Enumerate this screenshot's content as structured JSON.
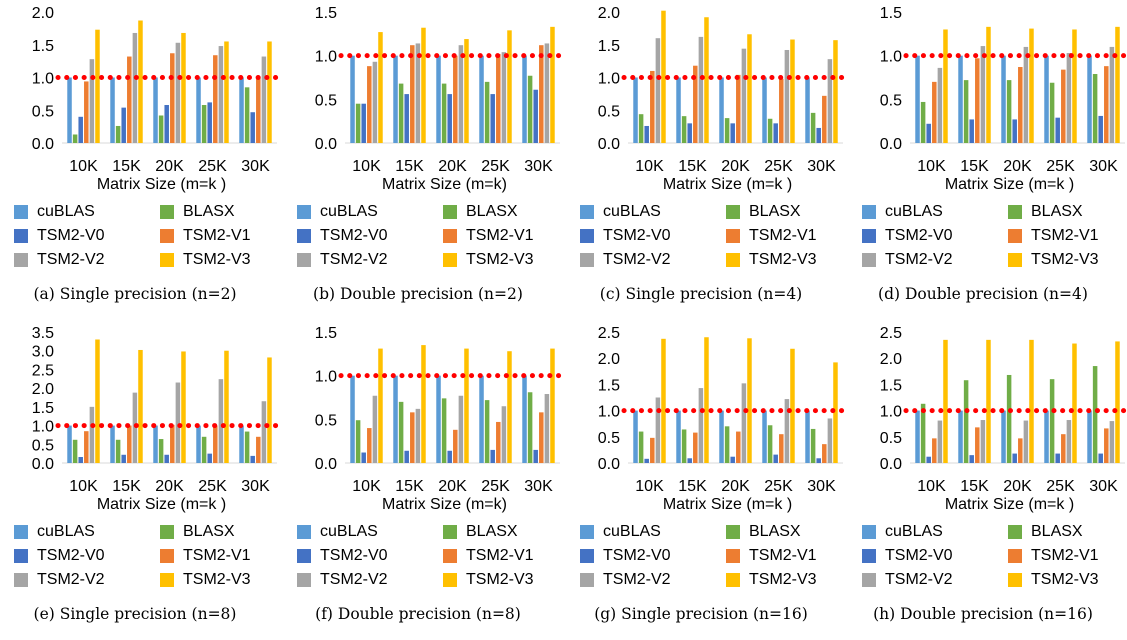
{
  "series_colors": {
    "cuBLAS": "#5b9bd5",
    "BLASX": "#70ad47",
    "TSM2-V0": "#4472c4",
    "TSM2-V1": "#ed7d31",
    "TSM2-V2": "#a5a5a5",
    "TSM2-V3": "#ffc000"
  },
  "reference_line_color": "#ff0000",
  "chart_data": [
    {
      "type": "bar",
      "caption": "(a) Single precision (n=2)",
      "xlabel": "Matrix Size (m=k )",
      "categories": [
        "10K",
        "15K",
        "20K",
        "25K",
        "30K"
      ],
      "ylim": [
        0,
        2.0
      ],
      "yticks": [
        "0.0",
        "0.5",
        "1.0",
        "1.5",
        "2.0"
      ],
      "reference_line": 1.0,
      "series": [
        {
          "name": "cuBLAS",
          "values": [
            1.0,
            1.0,
            1.0,
            1.0,
            1.0
          ]
        },
        {
          "name": "BLASX",
          "values": [
            0.13,
            0.26,
            0.42,
            0.58,
            0.85
          ]
        },
        {
          "name": "TSM2-V0",
          "values": [
            0.4,
            0.54,
            0.58,
            0.62,
            0.47
          ]
        },
        {
          "name": "TSM2-V1",
          "values": [
            0.94,
            1.32,
            1.37,
            1.34,
            1.0
          ]
        },
        {
          "name": "TSM2-V2",
          "values": [
            1.28,
            1.68,
            1.53,
            1.48,
            1.32
          ]
        },
        {
          "name": "TSM2-V3",
          "values": [
            1.73,
            1.87,
            1.68,
            1.55,
            1.55
          ]
        }
      ]
    },
    {
      "type": "bar",
      "caption": "(b) Double precision (n=2)",
      "xlabel": "Matrix Size (m=k)",
      "categories": [
        "10K",
        "15K",
        "20K",
        "25K",
        "30K"
      ],
      "ylim": [
        0,
        1.5
      ],
      "yticks": [
        "0.0",
        "0.5",
        "1.0",
        "1.5"
      ],
      "reference_line": 1.0,
      "series": [
        {
          "name": "cuBLAS",
          "values": [
            1.0,
            1.0,
            1.0,
            1.0,
            1.0
          ]
        },
        {
          "name": "BLASX",
          "values": [
            0.45,
            0.68,
            0.68,
            0.7,
            0.77
          ]
        },
        {
          "name": "TSM2-V0",
          "values": [
            0.45,
            0.56,
            0.56,
            0.56,
            0.61
          ]
        },
        {
          "name": "TSM2-V1",
          "values": [
            0.88,
            1.12,
            1.0,
            1.02,
            1.12
          ]
        },
        {
          "name": "TSM2-V2",
          "values": [
            0.93,
            1.14,
            1.12,
            1.04,
            1.14
          ]
        },
        {
          "name": "TSM2-V3",
          "values": [
            1.27,
            1.32,
            1.19,
            1.29,
            1.33
          ]
        }
      ]
    },
    {
      "type": "bar",
      "caption": "(c) Single precision (n=4)",
      "xlabel": "Matrix Size (m=k )",
      "categories": [
        "10K",
        "15K",
        "20K",
        "25K",
        "30K"
      ],
      "ylim": [
        0,
        2.0
      ],
      "yticks": [
        "0.0",
        "0.5",
        "1.0",
        "1.5",
        "2.0"
      ],
      "reference_line": 1.0,
      "series": [
        {
          "name": "cuBLAS",
          "values": [
            1.0,
            1.0,
            1.0,
            1.0,
            1.0
          ]
        },
        {
          "name": "BLASX",
          "values": [
            0.44,
            0.41,
            0.38,
            0.37,
            0.46
          ]
        },
        {
          "name": "TSM2-V0",
          "values": [
            0.26,
            0.3,
            0.3,
            0.3,
            0.23
          ]
        },
        {
          "name": "TSM2-V1",
          "values": [
            1.1,
            1.18,
            1.04,
            0.98,
            0.72
          ]
        },
        {
          "name": "TSM2-V2",
          "values": [
            1.6,
            1.62,
            1.44,
            1.42,
            1.28
          ]
        },
        {
          "name": "TSM2-V3",
          "values": [
            2.02,
            1.92,
            1.66,
            1.58,
            1.57
          ]
        }
      ]
    },
    {
      "type": "bar",
      "caption": "(d) Double precision (n=4)",
      "xlabel": "Matrix Size (m=k )",
      "categories": [
        "10K",
        "15K",
        "20K",
        "25K",
        "30K"
      ],
      "ylim": [
        0,
        1.5
      ],
      "yticks": [
        "0.0",
        "0.5",
        "1.0",
        "1.5"
      ],
      "reference_line": 1.0,
      "series": [
        {
          "name": "cuBLAS",
          "values": [
            1.0,
            1.0,
            1.0,
            1.0,
            1.0
          ]
        },
        {
          "name": "BLASX",
          "values": [
            0.47,
            0.72,
            0.72,
            0.69,
            0.79
          ]
        },
        {
          "name": "TSM2-V0",
          "values": [
            0.22,
            0.27,
            0.27,
            0.29,
            0.31
          ]
        },
        {
          "name": "TSM2-V1",
          "values": [
            0.7,
            0.97,
            0.87,
            0.84,
            0.88
          ]
        },
        {
          "name": "TSM2-V2",
          "values": [
            0.86,
            1.11,
            1.1,
            1.03,
            1.1
          ]
        },
        {
          "name": "TSM2-V3",
          "values": [
            1.3,
            1.33,
            1.31,
            1.3,
            1.33
          ]
        }
      ]
    },
    {
      "type": "bar",
      "caption": "(e) Single precision (n=8)",
      "xlabel": "Matrix Size (m=k )",
      "categories": [
        "10K",
        "15K",
        "20K",
        "25K",
        "30K"
      ],
      "ylim": [
        0,
        3.5
      ],
      "yticks": [
        "0.0",
        "0.5",
        "1.0",
        "1.5",
        "2.0",
        "2.5",
        "3.0",
        "3.5"
      ],
      "reference_line": 1.0,
      "series": [
        {
          "name": "cuBLAS",
          "values": [
            1.0,
            1.0,
            1.0,
            1.0,
            1.0
          ]
        },
        {
          "name": "BLASX",
          "values": [
            0.62,
            0.62,
            0.64,
            0.7,
            0.84
          ]
        },
        {
          "name": "TSM2-V0",
          "values": [
            0.16,
            0.22,
            0.22,
            0.25,
            0.19
          ]
        },
        {
          "name": "TSM2-V1",
          "values": [
            0.85,
            1.0,
            1.02,
            1.0,
            0.7
          ]
        },
        {
          "name": "TSM2-V2",
          "values": [
            1.5,
            1.88,
            2.15,
            2.24,
            1.65
          ]
        },
        {
          "name": "TSM2-V3",
          "values": [
            3.3,
            3.02,
            2.98,
            3.0,
            2.82
          ]
        }
      ]
    },
    {
      "type": "bar",
      "caption": "(f) Double precision (n=8)",
      "xlabel": "Matrix Size (m=k)",
      "categories": [
        "10K",
        "15K",
        "20K",
        "25K",
        "30K"
      ],
      "ylim": [
        0,
        1.5
      ],
      "yticks": [
        "0.0",
        "0.5",
        "1.0",
        "1.5"
      ],
      "reference_line": 1.0,
      "series": [
        {
          "name": "cuBLAS",
          "values": [
            1.0,
            1.0,
            1.0,
            1.0,
            1.0
          ]
        },
        {
          "name": "BLASX",
          "values": [
            0.49,
            0.7,
            0.74,
            0.72,
            0.81
          ]
        },
        {
          "name": "TSM2-V0",
          "values": [
            0.12,
            0.14,
            0.14,
            0.15,
            0.15
          ]
        },
        {
          "name": "TSM2-V1",
          "values": [
            0.4,
            0.58,
            0.38,
            0.47,
            0.58
          ]
        },
        {
          "name": "TSM2-V2",
          "values": [
            0.77,
            0.62,
            0.77,
            0.65,
            0.79
          ]
        },
        {
          "name": "TSM2-V3",
          "values": [
            1.31,
            1.35,
            1.31,
            1.28,
            1.31
          ]
        }
      ]
    },
    {
      "type": "bar",
      "caption": "(g) Single precision (n=16)",
      "xlabel": "Matrix Size (m=k )",
      "categories": [
        "10K",
        "15K",
        "20K",
        "25K",
        "30K"
      ],
      "ylim": [
        0,
        2.5
      ],
      "yticks": [
        "0.0",
        "0.5",
        "1.0",
        "1.5",
        "2.0",
        "2.5"
      ],
      "reference_line": 1.0,
      "series": [
        {
          "name": "cuBLAS",
          "values": [
            1.0,
            1.0,
            1.0,
            1.0,
            1.0
          ]
        },
        {
          "name": "BLASX",
          "values": [
            0.6,
            0.64,
            0.7,
            0.72,
            0.65
          ]
        },
        {
          "name": "TSM2-V0",
          "values": [
            0.08,
            0.09,
            0.12,
            0.16,
            0.09
          ]
        },
        {
          "name": "TSM2-V1",
          "values": [
            0.48,
            0.58,
            0.6,
            0.55,
            0.36
          ]
        },
        {
          "name": "TSM2-V2",
          "values": [
            1.25,
            1.43,
            1.52,
            1.22,
            0.85
          ]
        },
        {
          "name": "TSM2-V3",
          "values": [
            2.37,
            2.4,
            2.38,
            2.18,
            1.92
          ]
        }
      ]
    },
    {
      "type": "bar",
      "caption": "(h) Double precision (n=16)",
      "xlabel": "Matrix Size (m=k )",
      "categories": [
        "10K",
        "15K",
        "20K",
        "25K",
        "30K"
      ],
      "ylim": [
        0,
        2.5
      ],
      "yticks": [
        "0.0",
        "0.5",
        "1.0",
        "1.5",
        "2.0",
        "2.5"
      ],
      "reference_line": 1.0,
      "series": [
        {
          "name": "cuBLAS",
          "values": [
            1.0,
            1.0,
            1.0,
            1.0,
            1.0
          ]
        },
        {
          "name": "BLASX",
          "values": [
            1.13,
            1.58,
            1.68,
            1.6,
            1.85
          ]
        },
        {
          "name": "TSM2-V0",
          "values": [
            0.12,
            0.15,
            0.18,
            0.18,
            0.18
          ]
        },
        {
          "name": "TSM2-V1",
          "values": [
            0.47,
            0.68,
            0.47,
            0.55,
            0.66
          ]
        },
        {
          "name": "TSM2-V2",
          "values": [
            0.81,
            0.82,
            0.81,
            0.82,
            0.8
          ]
        },
        {
          "name": "TSM2-V3",
          "values": [
            2.35,
            2.35,
            2.35,
            2.28,
            2.32
          ]
        }
      ]
    }
  ]
}
